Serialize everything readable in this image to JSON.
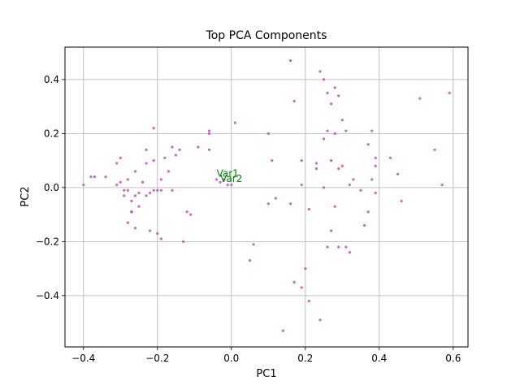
{
  "chart_data": {
    "type": "scatter",
    "title": "Top PCA Components",
    "xlabel": "PC1",
    "ylabel": "PC2",
    "xlim": [
      -0.45,
      0.64
    ],
    "ylim": [
      -0.59,
      0.52
    ],
    "xticks": [
      -0.4,
      -0.2,
      0.0,
      0.2,
      0.4,
      0.6
    ],
    "xtick_labels": [
      "−0.4",
      "−0.2",
      "0.0",
      "0.2",
      "0.4",
      "0.6"
    ],
    "yticks": [
      -0.4,
      -0.2,
      0.0,
      0.2,
      0.4
    ],
    "ytick_labels": [
      "−0.4",
      "−0.2",
      "0.0",
      "0.2",
      "0.4"
    ],
    "grid": true,
    "point_color": "#bf40bf",
    "annotation_color": "#008000",
    "annotations": [
      {
        "text": "Var1",
        "x": -0.01,
        "y": 0.04
      },
      {
        "text": "Var2",
        "x": 0.0,
        "y": 0.02
      }
    ],
    "points": [
      [
        -0.4,
        0.01
      ],
      [
        -0.38,
        0.04
      ],
      [
        -0.37,
        0.04
      ],
      [
        -0.34,
        0.04
      ],
      [
        -0.31,
        0.09
      ],
      [
        -0.3,
        0.11
      ],
      [
        -0.3,
        0.02
      ],
      [
        -0.31,
        0.01
      ],
      [
        -0.29,
        -0.01
      ],
      [
        -0.29,
        -0.03
      ],
      [
        -0.28,
        -0.01
      ],
      [
        -0.28,
        0.03
      ],
      [
        -0.27,
        -0.05
      ],
      [
        -0.27,
        -0.09
      ],
      [
        -0.27,
        -0.09
      ],
      [
        -0.28,
        -0.13
      ],
      [
        -0.26,
        -0.15
      ],
      [
        -0.26,
        -0.03
      ],
      [
        -0.26,
        0.06
      ],
      [
        -0.25,
        -0.07
      ],
      [
        -0.25,
        -0.02
      ],
      [
        -0.24,
        0.02
      ],
      [
        -0.23,
        0.14
      ],
      [
        -0.23,
        0.09
      ],
      [
        -0.22,
        -0.02
      ],
      [
        -0.21,
        -0.01
      ],
      [
        -0.21,
        0.1
      ],
      [
        -0.21,
        0.22
      ],
      [
        -0.2,
        -0.01
      ],
      [
        -0.2,
        -0.17
      ],
      [
        -0.19,
        -0.01
      ],
      [
        -0.19,
        0.03
      ],
      [
        -0.18,
        0.11
      ],
      [
        -0.17,
        0.06
      ],
      [
        -0.16,
        0.15
      ],
      [
        -0.15,
        0.12
      ],
      [
        -0.14,
        0.14
      ],
      [
        -0.13,
        -0.2
      ],
      [
        -0.12,
        -0.09
      ],
      [
        -0.11,
        -0.1
      ],
      [
        -0.09,
        0.15
      ],
      [
        -0.06,
        0.2
      ],
      [
        -0.06,
        0.21
      ],
      [
        -0.06,
        0.14
      ],
      [
        -0.22,
        -0.16
      ],
      [
        -0.19,
        -0.19
      ],
      [
        -0.16,
        -0.01
      ],
      [
        -0.23,
        -0.03
      ],
      [
        0.01,
        0.24
      ],
      [
        0.06,
        -0.21
      ],
      [
        0.05,
        -0.27
      ],
      [
        0.1,
        0.2
      ],
      [
        0.1,
        -0.06
      ],
      [
        0.11,
        0.1
      ],
      [
        0.12,
        -0.04
      ],
      [
        0.14,
        -0.53
      ],
      [
        0.16,
        0.47
      ],
      [
        0.16,
        -0.06
      ],
      [
        0.17,
        0.32
      ],
      [
        0.17,
        -0.35
      ],
      [
        0.19,
        -0.37
      ],
      [
        0.19,
        0.1
      ],
      [
        0.19,
        0.01
      ],
      [
        0.2,
        -0.3
      ],
      [
        0.21,
        -0.42
      ],
      [
        0.21,
        -0.08
      ],
      [
        0.23,
        0.09
      ],
      [
        0.23,
        0.07
      ],
      [
        0.24,
        0.43
      ],
      [
        0.24,
        -0.49
      ],
      [
        0.25,
        0.4
      ],
      [
        0.25,
        0.18
      ],
      [
        0.25,
        0.0
      ],
      [
        0.26,
        0.35
      ],
      [
        0.26,
        0.21
      ],
      [
        0.26,
        -0.22
      ],
      [
        0.27,
        0.31
      ],
      [
        0.27,
        0.1
      ],
      [
        0.27,
        -0.16
      ],
      [
        0.28,
        -0.07
      ],
      [
        0.28,
        0.2
      ],
      [
        0.28,
        0.37
      ],
      [
        0.29,
        0.34
      ],
      [
        0.29,
        0.07
      ],
      [
        0.29,
        -0.22
      ],
      [
        0.3,
        0.25
      ],
      [
        0.3,
        0.08
      ],
      [
        0.31,
        0.21
      ],
      [
        0.31,
        -0.22
      ],
      [
        0.32,
        0.01
      ],
      [
        0.32,
        -0.24
      ],
      [
        0.33,
        0.03
      ],
      [
        0.35,
        -0.01
      ],
      [
        0.36,
        -0.14
      ],
      [
        0.37,
        0.16
      ],
      [
        0.37,
        -0.09
      ],
      [
        0.38,
        0.21
      ],
      [
        0.38,
        0.03
      ],
      [
        0.39,
        0.08
      ],
      [
        0.39,
        -0.02
      ],
      [
        0.39,
        0.11
      ],
      [
        0.43,
        0.11
      ],
      [
        0.45,
        0.05
      ],
      [
        0.46,
        -0.05
      ],
      [
        0.51,
        0.33
      ],
      [
        0.55,
        0.14
      ],
      [
        0.57,
        0.01
      ],
      [
        0.59,
        0.35
      ],
      [
        -0.03,
        0.02
      ],
      [
        -0.01,
        0.01
      ],
      [
        0.0,
        0.01
      ],
      [
        -0.02,
        0.03
      ],
      [
        -0.04,
        0.03
      ]
    ]
  }
}
